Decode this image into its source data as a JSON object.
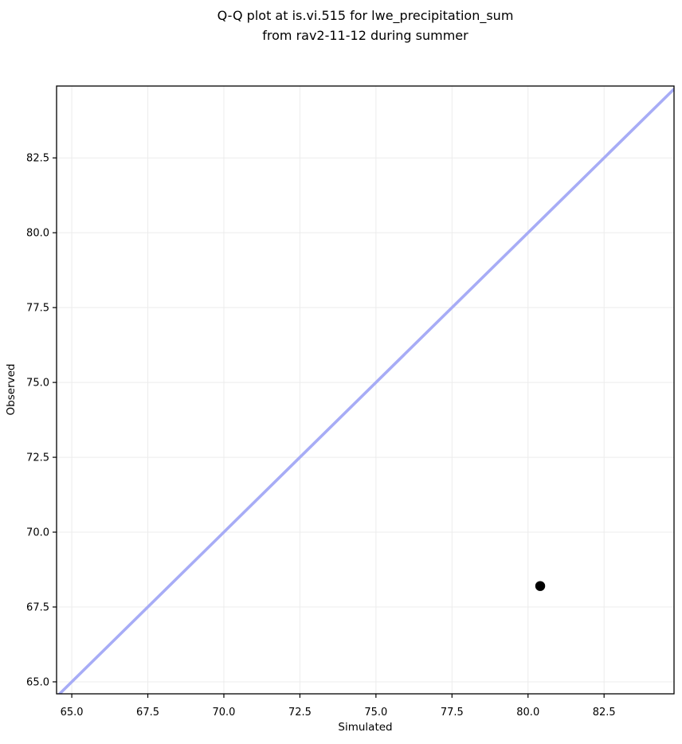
{
  "figure": {
    "title_line1": "Q-Q plot at is.vi.515 for lwe_precipitation_sum",
    "title_line2": "from rav2-11-12 during summer",
    "xlabel": "Simulated",
    "ylabel": "Observed"
  },
  "chart_data": {
    "type": "scatter",
    "title": "Q-Q plot at is.vi.515 for lwe_precipitation_sum\nfrom rav2-11-12 during summer",
    "xlabel": "Simulated",
    "ylabel": "Observed",
    "xlim": [
      64.5,
      84.8
    ],
    "ylim": [
      64.6,
      84.9
    ],
    "xticks": [
      65.0,
      67.5,
      70.0,
      72.5,
      75.0,
      77.5,
      80.0,
      82.5
    ],
    "yticks": [
      65.0,
      67.5,
      70.0,
      72.5,
      75.0,
      77.5,
      80.0,
      82.5
    ],
    "tick_decimals": 1,
    "grid": true,
    "grid_color": "#ececec",
    "spine_color": "#000000",
    "background": "#ffffff",
    "series": [
      {
        "name": "identity-line",
        "kind": "line",
        "color": "#a7acf6",
        "width": 3.6,
        "points": [
          {
            "x": 64.4,
            "y": 64.4
          },
          {
            "x": 85.0,
            "y": 85.0
          }
        ]
      },
      {
        "name": "observed-vs-simulated",
        "kind": "scatter",
        "color": "#000000",
        "marker_radius": 6.2,
        "points": [
          {
            "x": 80.4,
            "y": 68.2
          }
        ]
      }
    ]
  }
}
